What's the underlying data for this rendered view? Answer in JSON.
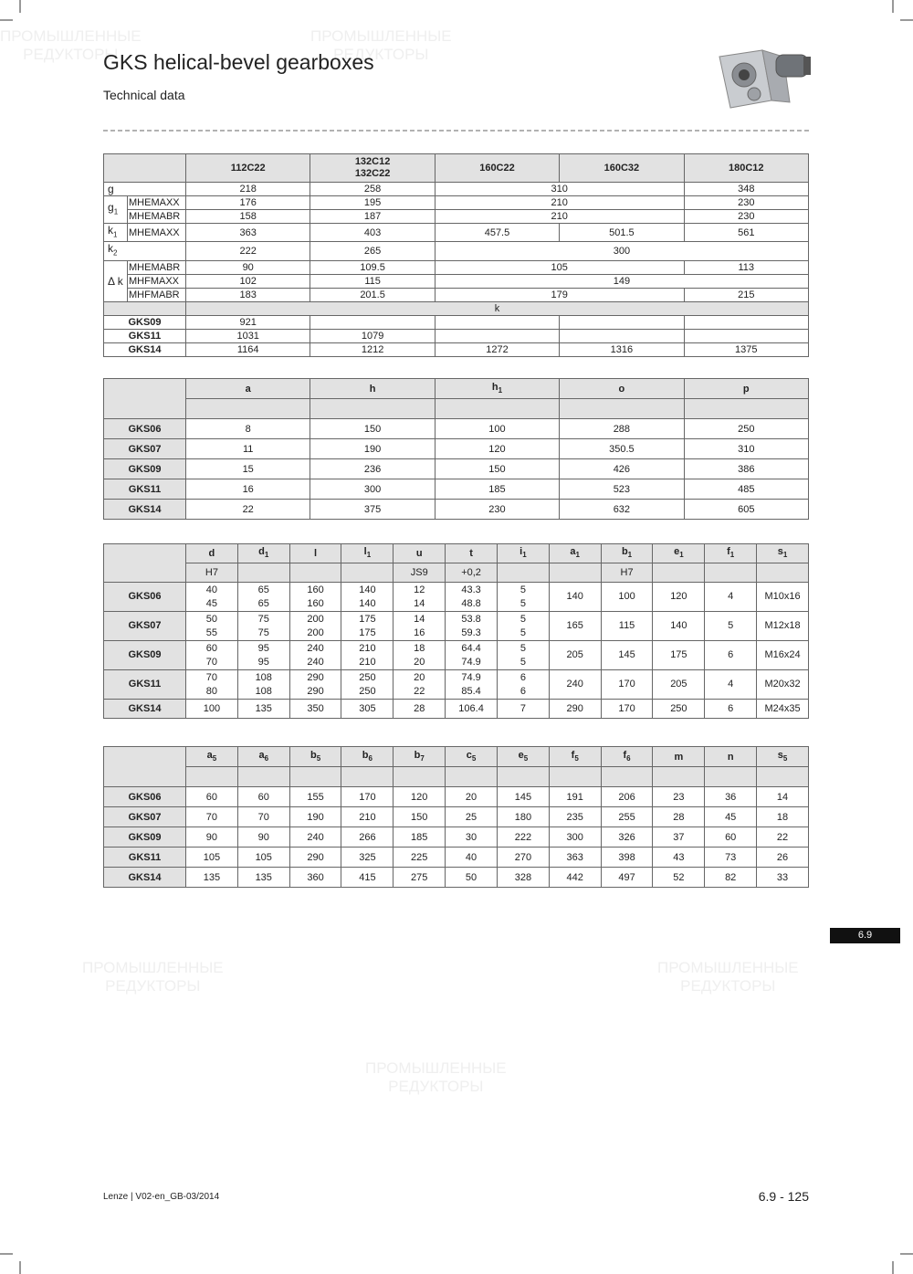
{
  "header": {
    "title": "GKS helical-bevel gearboxes",
    "subtitle": "Technical data"
  },
  "watermark": {
    "line1": "ПРОМЫШЛЕННЫЕ",
    "line2": "РЕДУКТОРЫ"
  },
  "table1": {
    "columns": [
      "112C22",
      [
        "132C12",
        "132C22"
      ],
      "160C22",
      "160C32",
      "180C12"
    ],
    "groups": [
      {
        "symbol": "g",
        "rows": [
          {
            "cells": [
              218,
              258,
              {
                "value": 310,
                "colspan": 2
              },
              348
            ]
          }
        ]
      },
      {
        "symbol": {
          "text": "g",
          "sub": "1"
        },
        "rows": [
          {
            "variant": "MHEMAXX",
            "cells": [
              176,
              195,
              {
                "value": 210,
                "colspan": 2
              },
              230
            ]
          },
          {
            "variant": "MHEMABR",
            "cells": [
              158,
              187,
              {
                "value": 210,
                "colspan": 2
              },
              230
            ]
          }
        ]
      },
      {
        "symbol": {
          "text": "k",
          "sub": "1"
        },
        "rows": [
          {
            "variant": "MHEMAXX",
            "cells": [
              363,
              403,
              457.5,
              501.5,
              561
            ]
          }
        ]
      },
      {
        "symbol": {
          "text": "k",
          "sub": "2"
        },
        "rows": [
          {
            "cells": [
              222,
              265,
              {
                "value": 300,
                "colspan": 3
              }
            ]
          }
        ]
      },
      {
        "symbol": "Δ k",
        "rows": [
          {
            "variant": "MHEMABR",
            "cells": [
              90,
              109.5,
              {
                "value": 105,
                "colspan": 2
              },
              113
            ]
          },
          {
            "variant": "MHFMAXX",
            "cells": [
              102,
              115,
              {
                "value": 149,
                "colspan": 3
              }
            ]
          },
          {
            "variant": "MHFMABR",
            "cells": [
              183,
              201.5,
              {
                "value": 179,
                "colspan": 2
              },
              215
            ]
          }
        ]
      }
    ],
    "section": "k",
    "k_rows": [
      {
        "label": "GKS09",
        "cells": [
          921
        ]
      },
      {
        "label": "GKS11",
        "cells": [
          1031,
          1079
        ]
      },
      {
        "label": "GKS14",
        "cells": [
          1164,
          1212,
          1272,
          1316,
          1375
        ]
      }
    ]
  },
  "table2": {
    "columns": [
      "a",
      "h",
      {
        "text": "h",
        "sub": "1"
      },
      "o",
      "p"
    ],
    "rows": [
      {
        "label": "GKS06",
        "cells": [
          8,
          150,
          100,
          288,
          250
        ]
      },
      {
        "label": "GKS07",
        "cells": [
          11,
          190,
          120,
          350.5,
          310
        ]
      },
      {
        "label": "GKS09",
        "cells": [
          15,
          236,
          150,
          426,
          386
        ]
      },
      {
        "label": "GKS11",
        "cells": [
          16,
          300,
          185,
          523,
          485
        ]
      },
      {
        "label": "GKS14",
        "cells": [
          22,
          375,
          230,
          632,
          605
        ]
      }
    ]
  },
  "table3": {
    "columns": [
      {
        "text": "d",
        "unit": "H7"
      },
      {
        "text": "d",
        "sub": "1"
      },
      {
        "text": "l"
      },
      {
        "text": "l",
        "sub": "1"
      },
      {
        "text": "u",
        "unit": "JS9"
      },
      {
        "text": "t",
        "unit": "+0,2"
      },
      {
        "text": "i",
        "sub": "1"
      },
      {
        "text": "a",
        "sub": "1"
      },
      {
        "text": "b",
        "sub": "1",
        "unit": "H7"
      },
      {
        "text": "e",
        "sub": "1"
      },
      {
        "text": "f",
        "sub": "1"
      },
      {
        "text": "s",
        "sub": "1"
      }
    ],
    "rows": [
      {
        "label": "GKS06",
        "cells": [
          [
            40,
            45
          ],
          [
            65,
            65
          ],
          [
            160,
            160
          ],
          [
            140,
            140
          ],
          [
            12,
            14
          ],
          [
            43.3,
            48.8
          ],
          [
            5,
            5
          ],
          140,
          100,
          120,
          4,
          "M10x16"
        ]
      },
      {
        "label": "GKS07",
        "cells": [
          [
            50,
            55
          ],
          [
            75,
            75
          ],
          [
            200,
            200
          ],
          [
            175,
            175
          ],
          [
            14,
            16
          ],
          [
            53.8,
            59.3
          ],
          [
            5,
            5
          ],
          165,
          115,
          140,
          5,
          "M12x18"
        ]
      },
      {
        "label": "GKS09",
        "cells": [
          [
            60,
            70
          ],
          [
            95,
            95
          ],
          [
            240,
            240
          ],
          [
            210,
            210
          ],
          [
            18,
            20
          ],
          [
            64.4,
            74.9
          ],
          [
            5,
            5
          ],
          205,
          145,
          175,
          6,
          "M16x24"
        ]
      },
      {
        "label": "GKS11",
        "cells": [
          [
            70,
            80
          ],
          [
            108,
            108
          ],
          [
            290,
            290
          ],
          [
            250,
            250
          ],
          [
            20,
            22
          ],
          [
            74.9,
            85.4
          ],
          [
            6,
            6
          ],
          240,
          170,
          205,
          4,
          "M20x32"
        ]
      },
      {
        "label": "GKS14",
        "cells": [
          100,
          135,
          350,
          305,
          28,
          106.4,
          7,
          290,
          170,
          250,
          6,
          "M24x35"
        ]
      }
    ]
  },
  "table4": {
    "columns": [
      {
        "text": "a",
        "sub": "5"
      },
      {
        "text": "a",
        "sub": "6"
      },
      {
        "text": "b",
        "sub": "5"
      },
      {
        "text": "b",
        "sub": "6"
      },
      {
        "text": "b",
        "sub": "7"
      },
      {
        "text": "c",
        "sub": "5"
      },
      {
        "text": "e",
        "sub": "5"
      },
      {
        "text": "f",
        "sub": "5"
      },
      {
        "text": "f",
        "sub": "6"
      },
      {
        "text": "m"
      },
      {
        "text": "n"
      },
      {
        "text": "s",
        "sub": "5"
      }
    ],
    "rows": [
      {
        "label": "GKS06",
        "cells": [
          60,
          60,
          155,
          170,
          120,
          20,
          145,
          191,
          206,
          23,
          36,
          14
        ]
      },
      {
        "label": "GKS07",
        "cells": [
          70,
          70,
          190,
          210,
          150,
          25,
          180,
          235,
          255,
          28,
          45,
          18
        ]
      },
      {
        "label": "GKS09",
        "cells": [
          90,
          90,
          240,
          266,
          185,
          30,
          222,
          300,
          326,
          37,
          60,
          22
        ]
      },
      {
        "label": "GKS11",
        "cells": [
          105,
          105,
          290,
          325,
          225,
          40,
          270,
          363,
          398,
          43,
          73,
          26
        ]
      },
      {
        "label": "GKS14",
        "cells": [
          135,
          135,
          360,
          415,
          275,
          50,
          328,
          442,
          497,
          52,
          82,
          33
        ]
      }
    ]
  },
  "page_tab": "6.9",
  "footer": {
    "left": "Lenze | V02-en_GB-03/2014",
    "right": "6.9 - 125"
  }
}
